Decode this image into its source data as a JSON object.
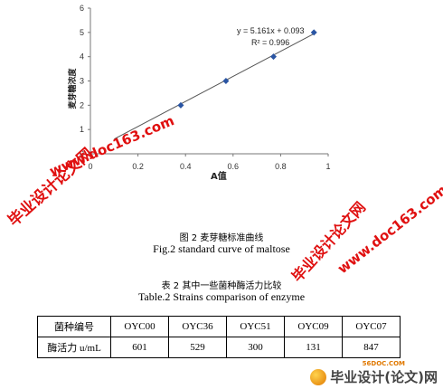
{
  "chart_data": {
    "type": "scatter",
    "x": [
      0.38,
      0.57,
      0.77,
      0.94
    ],
    "y": [
      2,
      3,
      4,
      5
    ],
    "xlim": [
      0,
      1
    ],
    "ylim": [
      0,
      6
    ],
    "xticks": [
      "0",
      "0.2",
      "0.4",
      "0.6",
      "0.8",
      "1"
    ],
    "yticks": [
      "0",
      "1",
      "2",
      "3",
      "4",
      "5",
      "6"
    ],
    "xlabel": "A值",
    "ylabel": "麦芽糖浓度",
    "trendline": {
      "slope": 5.161,
      "intercept": 0.093,
      "x_range": [
        0.1,
        0.94
      ]
    },
    "equation": "y = 5.161x + 0.093",
    "r_squared": "R² = 0.996",
    "grid": false
  },
  "figure": {
    "caption_cn": "图 2   麦芽糖标准曲线",
    "caption_en": "Fig.2    standard curve of maltose"
  },
  "table": {
    "title_cn": "表 2 其中一些菌种酶活力比较",
    "title_en": "Table.2 Strains comparison of enzyme",
    "header": [
      "菌种编号",
      "OYC00",
      "OYC36",
      "OYC51",
      "OYC09",
      "OYC07"
    ],
    "row": [
      "酶活力 u/mL",
      "601",
      "529",
      "300",
      "131",
      "847"
    ]
  },
  "watermarks": {
    "site_cn": "毕业设计论文网",
    "site_url": "www.doc163.com"
  },
  "logo": {
    "text": "毕业设计(论文)网",
    "small": "56DOC.COM"
  }
}
